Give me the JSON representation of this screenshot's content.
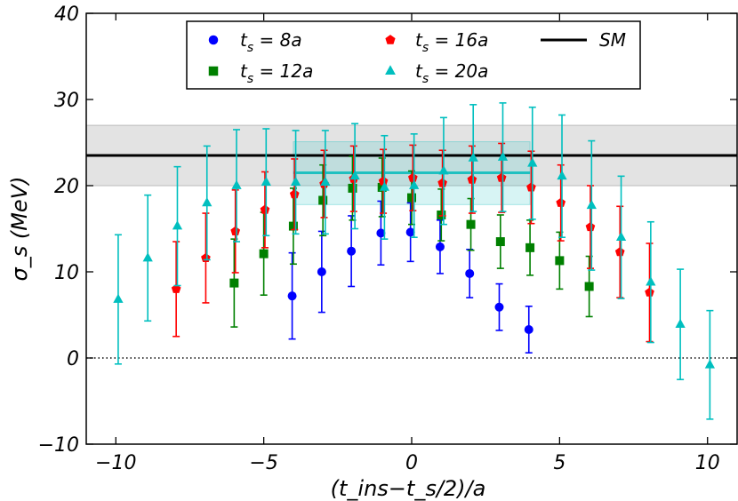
{
  "chart_data": {
    "type": "scatter",
    "xlabel": "(t_ins−t_s/2)/a",
    "ylabel": "σ_s (MeV)",
    "xlim": [
      -11,
      11
    ],
    "ylim": [
      -10,
      40
    ],
    "xticks": [
      -10,
      -5,
      0,
      5,
      10
    ],
    "yticks": [
      -10,
      0,
      10,
      20,
      30,
      40
    ],
    "xtick_labels": [
      "−10",
      "−5",
      "0",
      "5",
      "10"
    ],
    "ytick_labels": [
      "−10",
      "0",
      "10",
      "20",
      "30",
      "40"
    ],
    "zero_line": 0,
    "legend_position": "top-center",
    "sm": {
      "name": "SM",
      "label": "SM",
      "value": 23.5,
      "band": [
        20.0,
        27.0
      ],
      "color": "#000000",
      "band_color": "#d9d9d9"
    },
    "fit": {
      "value": 21.5,
      "band": [
        17.8,
        25.1
      ],
      "x_range": [
        -4,
        4
      ],
      "color": "#20c0c0"
    },
    "series": [
      {
        "name": "t_s = 8a",
        "legend_main": "t",
        "legend_sub": "s",
        "legend_value": " =  8a",
        "marker": "circle",
        "color": "#0000ff",
        "points": [
          {
            "x": -4,
            "y": 7.2,
            "err": 5.0
          },
          {
            "x": -3,
            "y": 10.0,
            "err": 4.7
          },
          {
            "x": -2,
            "y": 12.4,
            "err": 4.1
          },
          {
            "x": -1,
            "y": 14.5,
            "err": 3.7
          },
          {
            "x": 0,
            "y": 14.6,
            "err": 3.4
          },
          {
            "x": 1,
            "y": 12.9,
            "err": 3.1
          },
          {
            "x": 2,
            "y": 9.8,
            "err": 2.8
          },
          {
            "x": 3,
            "y": 5.9,
            "err": 2.7
          },
          {
            "x": 4,
            "y": 3.3,
            "err": 2.7
          }
        ]
      },
      {
        "name": "t_s = 12a",
        "legend_main": "t",
        "legend_sub": "s",
        "legend_value": " = 12a",
        "marker": "square",
        "color": "#008000",
        "points": [
          {
            "x": -6,
            "y": 8.7,
            "err": 5.1
          },
          {
            "x": -5,
            "y": 12.1,
            "err": 4.8
          },
          {
            "x": -4,
            "y": 15.3,
            "err": 4.4
          },
          {
            "x": -3,
            "y": 18.3,
            "err": 4.1
          },
          {
            "x": -2,
            "y": 19.7,
            "err": 3.7
          },
          {
            "x": -1,
            "y": 19.8,
            "err": 3.4
          },
          {
            "x": 0,
            "y": 18.6,
            "err": 3.1
          },
          {
            "x": 1,
            "y": 16.6,
            "err": 3.0
          },
          {
            "x": 2,
            "y": 15.5,
            "err": 3.0
          },
          {
            "x": 3,
            "y": 13.5,
            "err": 3.1
          },
          {
            "x": 4,
            "y": 12.8,
            "err": 3.2
          },
          {
            "x": 5,
            "y": 11.3,
            "err": 3.3
          },
          {
            "x": 6,
            "y": 8.3,
            "err": 3.5
          }
        ]
      },
      {
        "name": "t_s = 16a",
        "legend_main": "t",
        "legend_sub": "s",
        "legend_value": " = 16a",
        "marker": "pentagon",
        "color": "#ff0000",
        "points": [
          {
            "x": -8,
            "y": 8.0,
            "err": 5.5
          },
          {
            "x": -7,
            "y": 11.6,
            "err": 5.2
          },
          {
            "x": -6,
            "y": 14.7,
            "err": 4.8
          },
          {
            "x": -5,
            "y": 17.2,
            "err": 4.4
          },
          {
            "x": -4,
            "y": 19.0,
            "err": 4.1
          },
          {
            "x": -3,
            "y": 20.2,
            "err": 3.9
          },
          {
            "x": -2,
            "y": 20.8,
            "err": 3.8
          },
          {
            "x": -1,
            "y": 20.5,
            "err": 3.7
          },
          {
            "x": 0,
            "y": 20.9,
            "err": 3.8
          },
          {
            "x": 1,
            "y": 20.3,
            "err": 3.8
          },
          {
            "x": 2,
            "y": 20.7,
            "err": 3.9
          },
          {
            "x": 3,
            "y": 20.9,
            "err": 4.0
          },
          {
            "x": 4,
            "y": 19.8,
            "err": 4.2
          },
          {
            "x": 5,
            "y": 18.0,
            "err": 4.4
          },
          {
            "x": 6,
            "y": 15.2,
            "err": 4.8
          },
          {
            "x": 7,
            "y": 12.3,
            "err": 5.3
          },
          {
            "x": 8,
            "y": 7.6,
            "err": 5.7
          }
        ]
      },
      {
        "name": "t_s = 20a",
        "legend_main": "t",
        "legend_sub": "s",
        "legend_value": " = 20a",
        "marker": "triangle",
        "color": "#00bfbf",
        "points": [
          {
            "x": -10,
            "y": 6.8,
            "err": 7.5
          },
          {
            "x": -9,
            "y": 11.6,
            "err": 7.3
          },
          {
            "x": -8,
            "y": 15.3,
            "err": 6.9
          },
          {
            "x": -7,
            "y": 18.0,
            "err": 6.6
          },
          {
            "x": -6,
            "y": 20.0,
            "err": 6.5
          },
          {
            "x": -5,
            "y": 20.4,
            "err": 6.2
          },
          {
            "x": -4,
            "y": 20.4,
            "err": 6.0
          },
          {
            "x": -3,
            "y": 20.4,
            "err": 6.0
          },
          {
            "x": -2,
            "y": 21.1,
            "err": 6.1
          },
          {
            "x": -1,
            "y": 19.8,
            "err": 6.0
          },
          {
            "x": 0,
            "y": 20.0,
            "err": 6.0
          },
          {
            "x": 1,
            "y": 21.7,
            "err": 6.2
          },
          {
            "x": 2,
            "y": 23.2,
            "err": 6.2
          },
          {
            "x": 3,
            "y": 23.3,
            "err": 6.3
          },
          {
            "x": 4,
            "y": 22.6,
            "err": 6.5
          },
          {
            "x": 5,
            "y": 21.1,
            "err": 7.1
          },
          {
            "x": 6,
            "y": 17.7,
            "err": 7.5
          },
          {
            "x": 7,
            "y": 14.0,
            "err": 7.1
          },
          {
            "x": 8,
            "y": 8.8,
            "err": 7.0
          },
          {
            "x": 9,
            "y": 3.9,
            "err": 6.4
          },
          {
            "x": 10,
            "y": -0.8,
            "err": 6.3
          }
        ]
      }
    ]
  }
}
